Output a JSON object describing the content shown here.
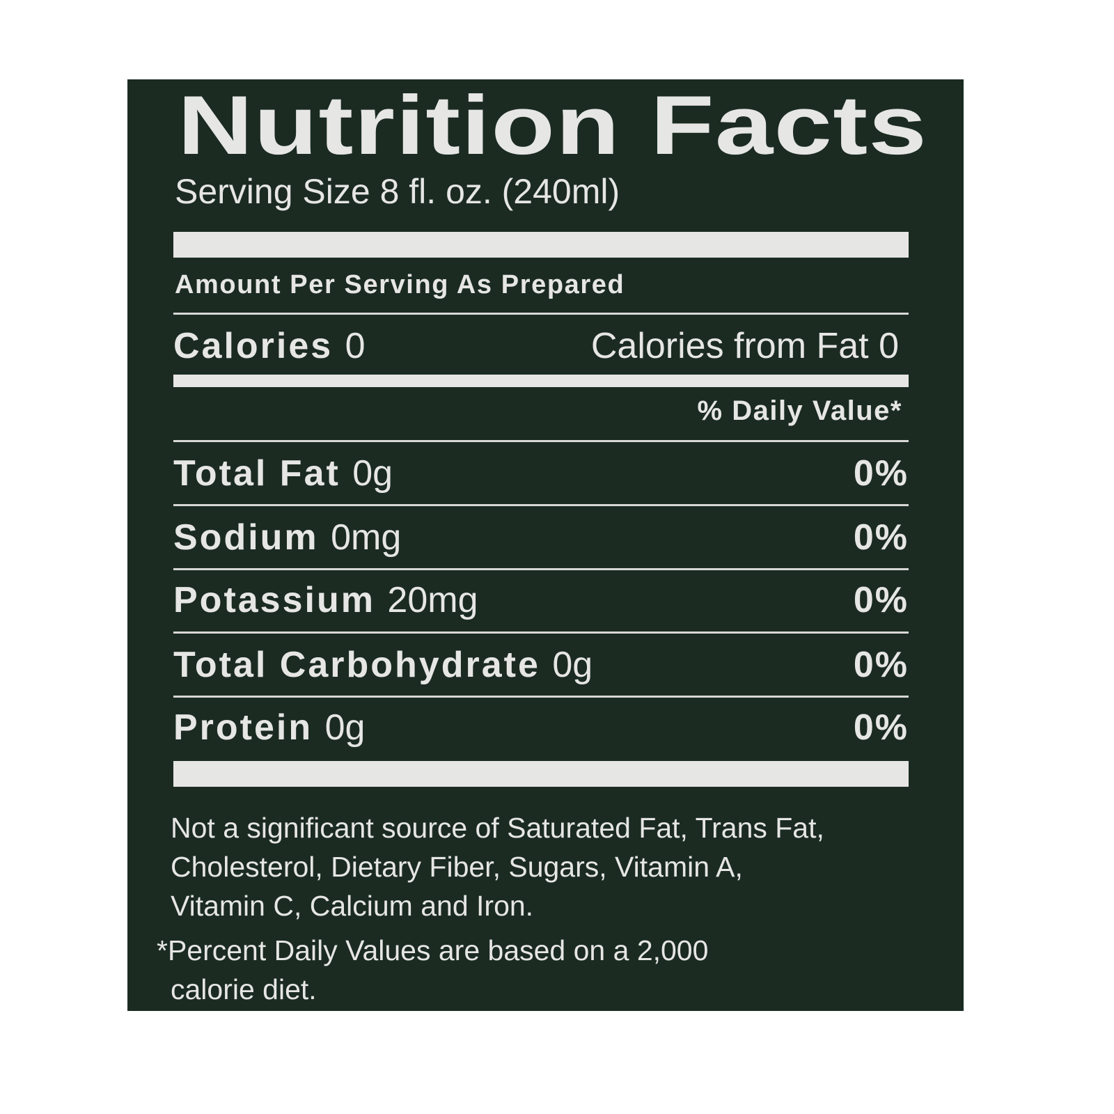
{
  "label": {
    "title": "Nutrition Facts",
    "serving_size": "Serving Size 8 fl. oz. (240ml)",
    "amount_per_serving": "Amount Per Serving As Prepared",
    "calories_label": "Calories",
    "calories_value": "0",
    "calories_from_fat": "Calories from Fat 0",
    "daily_value_header": "% Daily Value*",
    "nutrients": [
      {
        "name": "Total Fat",
        "amount": "0g",
        "dv": "0%"
      },
      {
        "name": "Sodium",
        "amount": "0mg",
        "dv": "0%"
      },
      {
        "name": "Potassium",
        "amount": "20mg",
        "dv": "0%"
      },
      {
        "name": "Total Carbohydrate",
        "amount": "0g",
        "dv": "0%"
      },
      {
        "name": "Protein",
        "amount": "0g",
        "dv": "0%"
      }
    ],
    "footnote_lines": [
      "Not a significant source of Saturated Fat, Trans Fat,",
      "Cholesterol, Dietary Fiber, Sugars, Vitamin A,",
      "Vitamin C, Calcium and Iron.",
      "*Percent Daily Values are based on a 2,000",
      "calorie diet."
    ],
    "colors": {
      "background": "#1b2b22",
      "text": "#e6e6e4"
    }
  }
}
